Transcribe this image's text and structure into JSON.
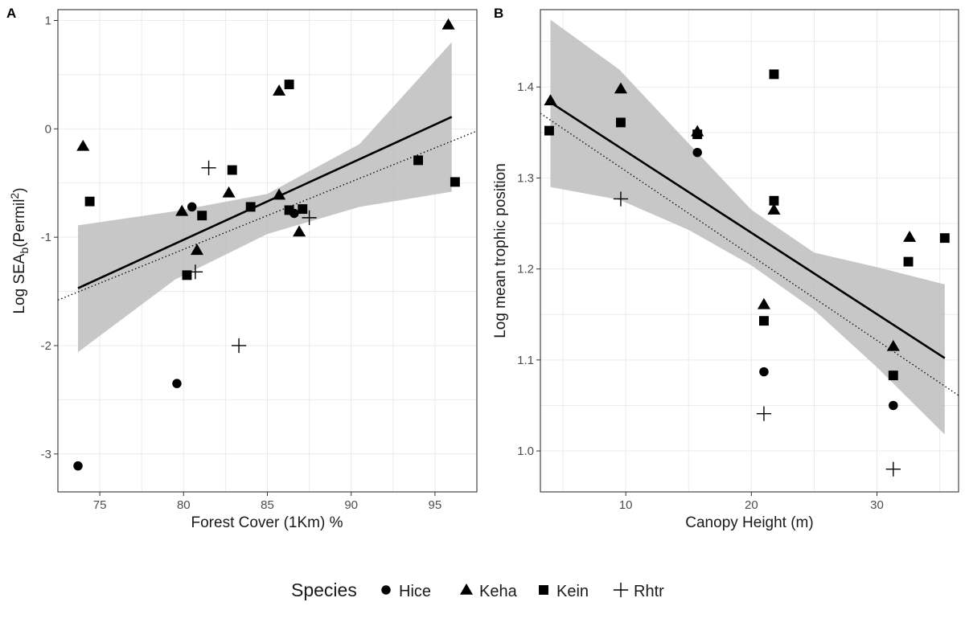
{
  "legend": {
    "title": "Species",
    "entries": [
      {
        "name": "Hice",
        "shape": "circle"
      },
      {
        "name": "Keha",
        "shape": "triangle"
      },
      {
        "name": "Kein",
        "shape": "square"
      },
      {
        "name": "Rhtr",
        "shape": "plus"
      }
    ]
  },
  "colors": {
    "points": "#000000",
    "ribbon": "#bdbdbd",
    "grid": "#ebebeb",
    "frame": "#333333",
    "fit": "#000000"
  },
  "chart_data": [
    {
      "type": "scatter",
      "panel_label": "A",
      "xlabel": "Forest Cover (1Km) %",
      "ylabel_main": "Log SEA",
      "ylabel_sub": "b",
      "ylabel_paren": "(Permil",
      "ylabel_sup": "2",
      "ylabel_close": ")",
      "xlim": [
        72.5,
        97.5
      ],
      "ylim": [
        -3.35,
        1.1
      ],
      "xticks": [
        75,
        80,
        85,
        90,
        95
      ],
      "xtick_labels": [
        "75",
        "80",
        "85",
        "90",
        "95"
      ],
      "yticks": [
        -3,
        -2,
        -1,
        0,
        1
      ],
      "ytick_labels": [
        "-3",
        "-2",
        "-1",
        "0",
        "1"
      ],
      "series": [
        {
          "name": "Hice",
          "shape": "circle",
          "points": [
            [
              73.7,
              -3.11
            ],
            [
              79.6,
              -2.35
            ],
            [
              80.5,
              -0.72
            ],
            [
              86.6,
              -0.78
            ]
          ]
        },
        {
          "name": "Keha",
          "shape": "triangle",
          "points": [
            [
              74.0,
              -0.16
            ],
            [
              79.9,
              -0.76
            ],
            [
              80.8,
              -1.12
            ],
            [
              82.7,
              -0.59
            ],
            [
              85.7,
              0.35
            ],
            [
              85.7,
              -0.61
            ],
            [
              86.9,
              -0.95
            ],
            [
              95.8,
              0.96
            ]
          ]
        },
        {
          "name": "Kein",
          "shape": "square",
          "points": [
            [
              74.4,
              -0.67
            ],
            [
              80.2,
              -1.35
            ],
            [
              81.1,
              -0.8
            ],
            [
              82.9,
              -0.38
            ],
            [
              84.0,
              -0.72
            ],
            [
              86.3,
              0.41
            ],
            [
              86.3,
              -0.75
            ],
            [
              87.1,
              -0.74
            ],
            [
              94.0,
              -0.29
            ],
            [
              96.2,
              -0.49
            ]
          ]
        },
        {
          "name": "Rhtr",
          "shape": "plus",
          "points": [
            [
              80.7,
              -1.32
            ],
            [
              81.5,
              -0.36
            ],
            [
              83.3,
              -2.0
            ],
            [
              87.5,
              -0.82
            ]
          ]
        }
      ],
      "fit_line": {
        "x": [
          73.7,
          96.0
        ],
        "y": [
          -1.47,
          0.11
        ]
      },
      "ci_band": {
        "x": [
          73.7,
          79.5,
          85.0,
          90.5,
          96.0
        ],
        "lower": [
          -2.06,
          -1.39,
          -0.97,
          -0.72,
          -0.58
        ],
        "upper": [
          -0.89,
          -0.76,
          -0.6,
          -0.14,
          0.8
        ]
      },
      "dotted_line": {
        "x": [
          72.5,
          97.5
        ],
        "y": [
          -1.58,
          -0.02
        ]
      }
    },
    {
      "type": "scatter",
      "panel_label": "B",
      "xlabel": "Canopy Height (m)",
      "ylabel": "Log mean trophic position",
      "xlim": [
        3.2,
        36.5
      ],
      "ylim": [
        0.955,
        1.485
      ],
      "xticks": [
        10,
        20,
        30
      ],
      "xtick_labels": [
        "10",
        "20",
        "30"
      ],
      "yticks": [
        1.0,
        1.1,
        1.2,
        1.3,
        1.4
      ],
      "ytick_labels": [
        "1.0",
        "1.1",
        "1.2",
        "1.3",
        "1.4"
      ],
      "series": [
        {
          "name": "Hice",
          "shape": "circle",
          "points": [
            [
              15.7,
              1.328
            ],
            [
              21.0,
              1.087
            ],
            [
              31.3,
              1.05
            ]
          ]
        },
        {
          "name": "Keha",
          "shape": "triangle",
          "points": [
            [
              4.0,
              1.385
            ],
            [
              9.6,
              1.398
            ],
            [
              15.7,
              1.351
            ],
            [
              21.0,
              1.161
            ],
            [
              21.8,
              1.265
            ],
            [
              31.3,
              1.115
            ],
            [
              32.6,
              1.235
            ]
          ]
        },
        {
          "name": "Kein",
          "shape": "square",
          "points": [
            [
              3.9,
              1.352
            ],
            [
              9.6,
              1.361
            ],
            [
              15.7,
              1.348
            ],
            [
              21.0,
              1.143
            ],
            [
              21.8,
              1.414
            ],
            [
              21.8,
              1.275
            ],
            [
              31.3,
              1.083
            ],
            [
              32.5,
              1.208
            ],
            [
              35.4,
              1.234
            ]
          ]
        },
        {
          "name": "Rhtr",
          "shape": "plus",
          "points": [
            [
              9.6,
              1.277
            ],
            [
              21.0,
              1.041
            ],
            [
              31.3,
              0.98
            ]
          ]
        }
      ],
      "fit_line": {
        "x": [
          4.0,
          35.4
        ],
        "y": [
          1.383,
          1.102
        ]
      },
      "ci_band": {
        "x": [
          4.0,
          9.5,
          15.0,
          20.0,
          25.0,
          30.0,
          35.4
        ],
        "lower": [
          1.29,
          1.276,
          1.243,
          1.204,
          1.155,
          1.092,
          1.018
        ],
        "upper": [
          1.474,
          1.419,
          1.338,
          1.265,
          1.218,
          1.202,
          1.183
        ]
      },
      "dotted_line": {
        "x": [
          3.2,
          36.5
        ],
        "y": [
          1.371,
          1.061
        ]
      }
    }
  ]
}
